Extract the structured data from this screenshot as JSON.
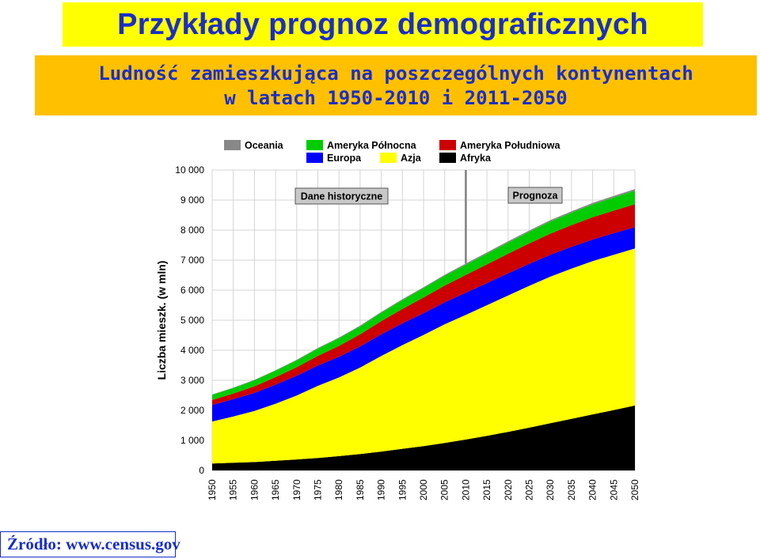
{
  "header": {
    "title": "Przykłady prognoz demograficznych",
    "subtitle_line1": "Ludność zamieszkująca na poszczególnych kontynentach",
    "subtitle_line2": "w latach 1950-2010 i 2011-2050"
  },
  "footer": {
    "source": "Źródło: www.census.gov"
  },
  "chart_data": {
    "type": "area",
    "stacked": true,
    "title": "",
    "xlabel": "",
    "ylabel": "Liczba mieszk. (w mln)",
    "x": [
      1950,
      1955,
      1960,
      1965,
      1970,
      1975,
      1980,
      1985,
      1990,
      1995,
      2000,
      2005,
      2010,
      2015,
      2020,
      2025,
      2030,
      2035,
      2040,
      2045,
      2050
    ],
    "ylim": [
      0,
      10000
    ],
    "yticks": [
      0,
      1000,
      2000,
      3000,
      4000,
      5000,
      6000,
      7000,
      8000,
      9000,
      10000
    ],
    "ytick_labels": [
      "0",
      "1 000",
      "2 000",
      "3 000",
      "4 000",
      "5 000",
      "6 000",
      "7 000",
      "8 000",
      "9 000",
      "10 000"
    ],
    "grid": true,
    "legend_position": "top",
    "annotations": [
      {
        "text": "Dane historyczne"
      },
      {
        "text": "Prognoza"
      }
    ],
    "divider_x": 2010,
    "series": [
      {
        "name": "Afryka",
        "color": "#000000",
        "values": [
          230,
          255,
          280,
          320,
          365,
          415,
          475,
          545,
          630,
          720,
          810,
          915,
          1030,
          1150,
          1285,
          1425,
          1570,
          1715,
          1865,
          2010,
          2160
        ]
      },
      {
        "name": "Azja",
        "color": "#ffff00",
        "values": [
          1400,
          1540,
          1700,
          1900,
          2130,
          2400,
          2620,
          2880,
          3180,
          3450,
          3700,
          3950,
          4150,
          4350,
          4540,
          4720,
          4880,
          5000,
          5100,
          5170,
          5230
        ]
      },
      {
        "name": "Europa",
        "color": "#0000ff",
        "values": [
          550,
          575,
          600,
          635,
          655,
          675,
          690,
          705,
          720,
          725,
          725,
          730,
          735,
          735,
          735,
          732,
          730,
          725,
          720,
          715,
          710
        ]
      },
      {
        "name": "Ameryka Południowa",
        "color": "#cc0000",
        "values": [
          165,
          190,
          220,
          250,
          285,
          322,
          360,
          400,
          440,
          480,
          520,
          555,
          590,
          622,
          652,
          678,
          702,
          722,
          740,
          752,
          762
        ]
      },
      {
        "name": "Ameryka Północna",
        "color": "#00cc00",
        "values": [
          170,
          185,
          200,
          215,
          230,
          242,
          255,
          268,
          280,
          295,
          315,
          330,
          345,
          360,
          375,
          390,
          405,
          418,
          430,
          440,
          450
        ]
      },
      {
        "name": "Oceania",
        "color": "#888888",
        "values": [
          13,
          14,
          16,
          17,
          19,
          21,
          23,
          25,
          27,
          29,
          31,
          34,
          36,
          38,
          41,
          43,
          45,
          47,
          49,
          51,
          53
        ]
      }
    ],
    "legend_order": [
      "Oceania",
      "Ameryka Północna",
      "Ameryka Południowa",
      "Europa",
      "Azja",
      "Afryka"
    ]
  }
}
